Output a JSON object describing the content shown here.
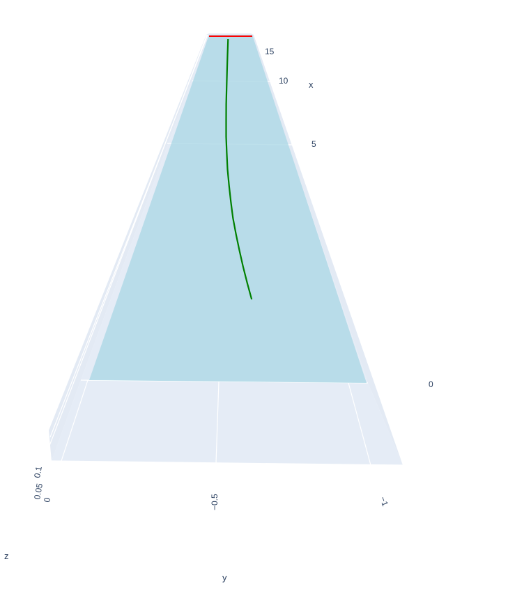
{
  "chart_data": {
    "type": "surface3d",
    "title": "",
    "colors": {
      "floor": "#e5ecf6",
      "wall": "#e7edf6",
      "grid": "#ffffff",
      "surface": "#add8e6",
      "trajectory": "#008000",
      "topline": "#ff0000",
      "text": "#2a3f5f"
    },
    "axes": {
      "x": {
        "label": "x",
        "ticks": [
          {
            "value": 0,
            "label": "0"
          },
          {
            "value": 5,
            "label": "5"
          },
          {
            "value": 10,
            "label": "10"
          },
          {
            "value": 15,
            "label": "15"
          }
        ]
      },
      "y": {
        "label": "y",
        "ticks": [
          {
            "value": -0.5,
            "label": "−0.5"
          },
          {
            "value": -1,
            "label": "−1"
          }
        ]
      },
      "z": {
        "label": "z",
        "ticks": [
          {
            "value": 0,
            "label": "0"
          },
          {
            "value": 0.05,
            "label": "0.05"
          },
          {
            "value": 0.1,
            "label": "0.1"
          }
        ]
      }
    },
    "series": [
      {
        "type": "surface",
        "description_value": "flat plane"
      },
      {
        "type": "line",
        "x": [
          0,
          1,
          2,
          3,
          4,
          5,
          6,
          7,
          8,
          9,
          10,
          11,
          12,
          13,
          14,
          15,
          16
        ],
        "y": [
          -0.62,
          -0.6,
          -0.58,
          -0.56,
          -0.54,
          -0.52,
          -0.505,
          -0.49,
          -0.475,
          -0.465,
          -0.455,
          -0.45,
          -0.445,
          -0.443,
          -0.442,
          -0.441,
          -0.44
        ]
      }
    ]
  }
}
